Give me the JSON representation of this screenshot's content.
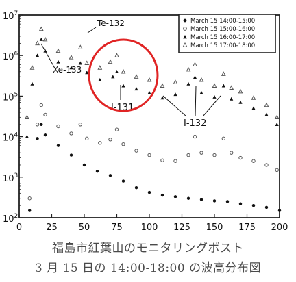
{
  "chart_data": {
    "type": "scatter",
    "yscale": "log",
    "xlim": [
      0,
      200
    ],
    "ylim_exponent": [
      2,
      7
    ],
    "xticks": [
      "0",
      "25",
      "50",
      "75",
      "100",
      "125",
      "150",
      "175",
      "200"
    ],
    "yticks": [
      {
        "base": "10",
        "exp": "2"
      },
      {
        "base": "10",
        "exp": "3"
      },
      {
        "base": "10",
        "exp": "4"
      },
      {
        "base": "10",
        "exp": "5"
      },
      {
        "base": "10",
        "exp": "6"
      },
      {
        "base": "10",
        "exp": "7"
      }
    ],
    "legend_position": "top-right",
    "series": [
      {
        "name": "March 15  14:00-15:00",
        "marker": "filled-circle",
        "points": [
          [
            8,
            150
          ],
          [
            14,
            9000
          ],
          [
            17,
            20000
          ],
          [
            20,
            11000
          ],
          [
            30,
            6000
          ],
          [
            40,
            3500
          ],
          [
            50,
            2000
          ],
          [
            60,
            1400
          ],
          [
            70,
            1100
          ],
          [
            80,
            800
          ],
          [
            90,
            550
          ],
          [
            100,
            420
          ],
          [
            110,
            360
          ],
          [
            120,
            330
          ],
          [
            130,
            300
          ],
          [
            140,
            280
          ],
          [
            150,
            260
          ],
          [
            160,
            250
          ],
          [
            170,
            220
          ],
          [
            180,
            200
          ],
          [
            190,
            180
          ],
          [
            200,
            150
          ]
        ]
      },
      {
        "name": "March 15  15:00-16:00",
        "marker": "open-circle",
        "points": [
          [
            8,
            300
          ],
          [
            14,
            20000
          ],
          [
            17,
            60000
          ],
          [
            20,
            35000
          ],
          [
            30,
            18000
          ],
          [
            40,
            12000
          ],
          [
            47,
            20000
          ],
          [
            52,
            9000
          ],
          [
            62,
            7000
          ],
          [
            70,
            8500
          ],
          [
            75,
            15000
          ],
          [
            80,
            6500
          ],
          [
            90,
            4500
          ],
          [
            100,
            3500
          ],
          [
            110,
            2600
          ],
          [
            120,
            2500
          ],
          [
            130,
            3500
          ],
          [
            135,
            10000
          ],
          [
            140,
            4000
          ],
          [
            150,
            3500
          ],
          [
            157,
            9000
          ],
          [
            163,
            4000
          ],
          [
            170,
            3000
          ],
          [
            180,
            2500
          ],
          [
            190,
            2000
          ],
          [
            198,
            1500
          ]
        ]
      },
      {
        "name": "March 15  16:00-17:00",
        "marker": "filled-triangle",
        "points": [
          [
            6,
            10000
          ],
          [
            10,
            200000
          ],
          [
            14,
            1000000
          ],
          [
            17,
            2500000
          ],
          [
            20,
            1300000
          ],
          [
            30,
            700000
          ],
          [
            40,
            500000
          ],
          [
            47,
            650000
          ],
          [
            52,
            380000
          ],
          [
            62,
            250000
          ],
          [
            72,
            300000
          ],
          [
            75,
            400000
          ],
          [
            80,
            180000
          ],
          [
            90,
            150000
          ],
          [
            100,
            120000
          ],
          [
            110,
            90000
          ],
          [
            120,
            110000
          ],
          [
            130,
            200000
          ],
          [
            135,
            290000
          ],
          [
            140,
            120000
          ],
          [
            150,
            95000
          ],
          [
            157,
            180000
          ],
          [
            163,
            85000
          ],
          [
            170,
            70000
          ],
          [
            180,
            50000
          ],
          [
            190,
            35000
          ],
          [
            198,
            20000
          ]
        ]
      },
      {
        "name": "March 15  17:00-18:00",
        "marker": "open-triangle",
        "points": [
          [
            6,
            30000
          ],
          [
            10,
            500000
          ],
          [
            14,
            2000000
          ],
          [
            17,
            4500000
          ],
          [
            20,
            2500000
          ],
          [
            30,
            1300000
          ],
          [
            40,
            900000
          ],
          [
            47,
            1600000
          ],
          [
            52,
            650000
          ],
          [
            62,
            500000
          ],
          [
            70,
            700000
          ],
          [
            75,
            1000000
          ],
          [
            80,
            400000
          ],
          [
            90,
            300000
          ],
          [
            100,
            250000
          ],
          [
            110,
            180000
          ],
          [
            120,
            220000
          ],
          [
            130,
            450000
          ],
          [
            135,
            600000
          ],
          [
            140,
            250000
          ],
          [
            150,
            180000
          ],
          [
            157,
            350000
          ],
          [
            163,
            160000
          ],
          [
            170,
            130000
          ],
          [
            180,
            90000
          ],
          [
            190,
            60000
          ],
          [
            198,
            30000
          ]
        ]
      }
    ],
    "annotations": [
      {
        "text": "Te-132"
      },
      {
        "text": "Xe-133"
      },
      {
        "text": "I-131"
      },
      {
        "text": "I-132"
      }
    ]
  },
  "caption_line1": "福島市紅葉山のモニタリングポスト",
  "caption_line2": "3 月 15 日の 14:00-18:00 の波高分布図"
}
